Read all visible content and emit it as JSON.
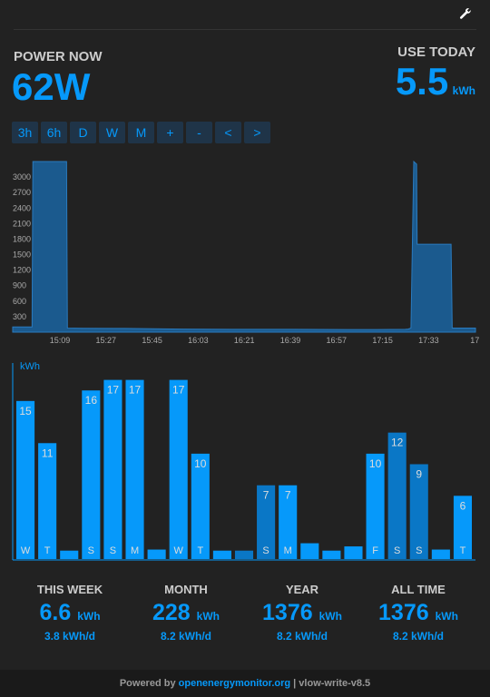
{
  "header": {
    "settings_icon": "wrench-icon"
  },
  "power_now": {
    "label": "POWER NOW",
    "value": "62W"
  },
  "use_today": {
    "label": "USE TODAY",
    "value": "5.5",
    "unit": "kWh"
  },
  "range_buttons": [
    "3h",
    "6h",
    "D",
    "W",
    "M",
    "+",
    "-",
    "<",
    ">"
  ],
  "colors": {
    "accent": "#0699fa",
    "bar": "#0699fa",
    "bar_dark": "#0a77c6",
    "background": "#222222"
  },
  "chart_data": [
    {
      "type": "area",
      "x_ticks": [
        "15:09",
        "15:27",
        "15:45",
        "16:03",
        "16:21",
        "16:39",
        "16:57",
        "17:15",
        "17:33",
        "17"
      ],
      "y_ticks": [
        300,
        600,
        900,
        1200,
        1500,
        1800,
        2100,
        2400,
        2700,
        3000
      ],
      "ylim": [
        0,
        3300
      ],
      "xlim": [
        0,
        165
      ],
      "x_unit": "minutes from 14:51",
      "x": [
        0,
        6.9,
        7.2,
        19.2,
        19.5,
        25,
        40,
        60,
        80,
        100,
        120,
        130,
        140,
        141,
        142,
        143,
        144,
        144.2,
        150,
        156.3,
        156.7,
        165
      ],
      "y": [
        100,
        100,
        3300,
        3300,
        80,
        75,
        72,
        60,
        55,
        55,
        50,
        50,
        55,
        60,
        80,
        3300,
        3250,
        1700,
        1700,
        1700,
        80,
        80
      ]
    },
    {
      "type": "bar",
      "ylabel": "kWh",
      "categories": [
        "W",
        "T",
        "",
        "S",
        "S",
        "M",
        "",
        "W",
        "T",
        "",
        "",
        "S",
        "M",
        "",
        "",
        "",
        "F",
        "S",
        "S",
        "",
        "T"
      ],
      "values": [
        15,
        11,
        0.8,
        16,
        17,
        17,
        0.9,
        17,
        10,
        0.8,
        0.8,
        7,
        7,
        1.5,
        0.8,
        1.2,
        10,
        12,
        9,
        0.9,
        6
      ],
      "value_labels": [
        "15",
        "11",
        "",
        "16",
        "17",
        "17",
        "",
        "17",
        "10",
        "",
        "",
        "7",
        "7",
        "",
        "",
        "",
        "10",
        "12",
        "9",
        "",
        "6"
      ],
      "dark": [
        false,
        false,
        false,
        false,
        false,
        false,
        false,
        false,
        false,
        false,
        true,
        true,
        false,
        false,
        false,
        false,
        false,
        true,
        true,
        false,
        false
      ],
      "ylim": [
        0,
        18
      ]
    }
  ],
  "stats": [
    {
      "label": "THIS WEEK",
      "value": "6.6",
      "unit": "kWh",
      "rate": "3.8 kWh/d"
    },
    {
      "label": "MONTH",
      "value": "228",
      "unit": "kWh",
      "rate": "8.2 kWh/d"
    },
    {
      "label": "YEAR",
      "value": "1376",
      "unit": "kWh",
      "rate": "8.2 kWh/d"
    },
    {
      "label": "ALL TIME",
      "value": "1376",
      "unit": "kWh",
      "rate": "8.2 kWh/d"
    }
  ],
  "footer": {
    "prefix": "Powered by",
    "link": "openenergymonitor.org",
    "suffix": "| vlow-write-v8.5"
  }
}
